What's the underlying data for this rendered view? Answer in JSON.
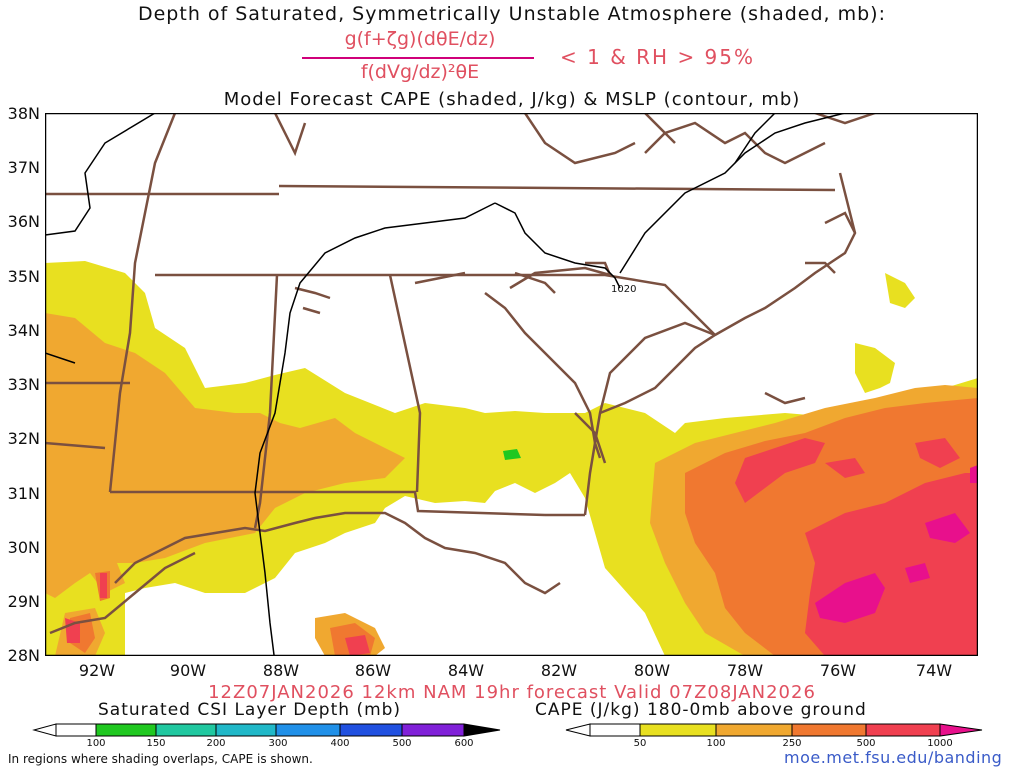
{
  "title_line1": "Depth of Saturated, Symmetrically Unstable Atmosphere (shaded, mb):",
  "equation": {
    "numerator": "g(f+ζg)(dθE/dz)",
    "denominator": "f(dVg/dz)²θE",
    "condition": "< 1 & RH > 95%"
  },
  "title_line2": "Model Forecast CAPE (shaded, J/kg) & MSLP (contour, mb)",
  "map": {
    "lat_labels": [
      "38N",
      "37N",
      "36N",
      "35N",
      "34N",
      "33N",
      "32N",
      "31N",
      "30N",
      "29N",
      "28N"
    ],
    "lon_labels": [
      "92W",
      "90W",
      "88W",
      "86W",
      "84W",
      "82W",
      "80W",
      "78W",
      "76W",
      "74W"
    ],
    "lat_range": [
      28,
      38
    ],
    "lon_range": [
      -93,
      -73
    ],
    "isobar_label": "1020",
    "colors": {
      "state_borders": "#7a5040",
      "isobar": "#000000",
      "cape_50": "#e8e020",
      "cape_100": "#f0a830",
      "cape_250": "#f07830",
      "cape_500": "#f04050",
      "cape_1000": "#e8108c",
      "csi_100": "#20c820"
    }
  },
  "valid_text": "12Z07JAN2026 12km NAM 19hr forecast Valid 07Z08JAN2026",
  "csi_legend": {
    "title": "Saturated CSI Layer Depth (mb)",
    "ticks": [
      "100",
      "150",
      "200",
      "300",
      "400",
      "500",
      "600"
    ],
    "colors": [
      "#20c820",
      "#20c8a0",
      "#20b8c8",
      "#2090e8",
      "#2050e0",
      "#3820d8",
      "#8020d8"
    ]
  },
  "cape_legend": {
    "title": "CAPE (J/kg) 180-0mb above ground",
    "ticks": [
      "50",
      "100",
      "250",
      "500",
      "1000"
    ],
    "colors": [
      "#e8e020",
      "#f0a830",
      "#f07830",
      "#f04050",
      "#e8108c"
    ]
  },
  "note": "In regions where shading overlaps, CAPE is shown.",
  "site": "moe.met.fsu.edu/banding"
}
